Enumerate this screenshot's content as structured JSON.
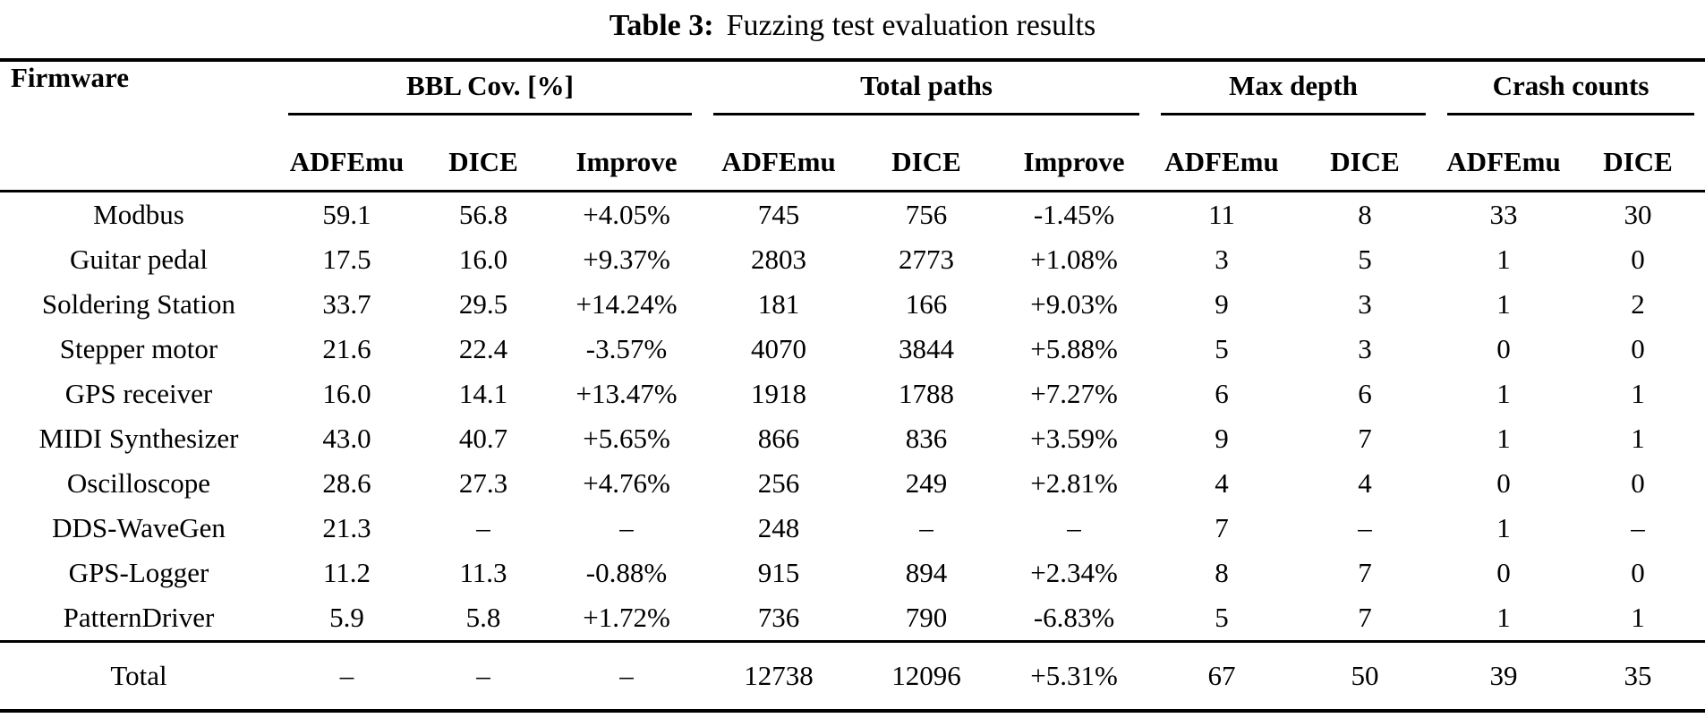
{
  "title": {
    "label": "Table 3:",
    "caption": "Fuzzing test evaluation results"
  },
  "table": {
    "firmware_header": "Firmware",
    "groups": [
      {
        "label": "BBL Cov. [%]",
        "cols": [
          "ADFEmu",
          "DICE",
          "Improve"
        ]
      },
      {
        "label": "Total paths",
        "cols": [
          "ADFEmu",
          "DICE",
          "Improve"
        ]
      },
      {
        "label": "Max depth",
        "cols": [
          "ADFEmu",
          "DICE"
        ]
      },
      {
        "label": "Crash counts",
        "cols": [
          "ADFEmu",
          "DICE"
        ]
      }
    ],
    "rows": [
      {
        "firmware": "Modbus",
        "values": [
          "59.1",
          "56.8",
          "+4.05%",
          "745",
          "756",
          "-1.45%",
          "11",
          "8",
          "33",
          "30"
        ]
      },
      {
        "firmware": "Guitar pedal",
        "values": [
          "17.5",
          "16.0",
          "+9.37%",
          "2803",
          "2773",
          "+1.08%",
          "3",
          "5",
          "1",
          "0"
        ]
      },
      {
        "firmware": "Soldering Station",
        "values": [
          "33.7",
          "29.5",
          "+14.24%",
          "181",
          "166",
          "+9.03%",
          "9",
          "3",
          "1",
          "2"
        ]
      },
      {
        "firmware": "Stepper motor",
        "values": [
          "21.6",
          "22.4",
          "-3.57%",
          "4070",
          "3844",
          "+5.88%",
          "5",
          "3",
          "0",
          "0"
        ]
      },
      {
        "firmware": "GPS receiver",
        "values": [
          "16.0",
          "14.1",
          "+13.47%",
          "1918",
          "1788",
          "+7.27%",
          "6",
          "6",
          "1",
          "1"
        ]
      },
      {
        "firmware": "MIDI Synthesizer",
        "values": [
          "43.0",
          "40.7",
          "+5.65%",
          "866",
          "836",
          "+3.59%",
          "9",
          "7",
          "1",
          "1"
        ]
      },
      {
        "firmware": "Oscilloscope",
        "values": [
          "28.6",
          "27.3",
          "+4.76%",
          "256",
          "249",
          "+2.81%",
          "4",
          "4",
          "0",
          "0"
        ]
      },
      {
        "firmware": "DDS-WaveGen",
        "values": [
          "21.3",
          "–",
          "–",
          "248",
          "–",
          "–",
          "7",
          "–",
          "1",
          "–"
        ]
      },
      {
        "firmware": "GPS-Logger",
        "values": [
          "11.2",
          "11.3",
          "-0.88%",
          "915",
          "894",
          "+2.34%",
          "8",
          "7",
          "0",
          "0"
        ]
      },
      {
        "firmware": "PatternDriver",
        "values": [
          "5.9",
          "5.8",
          "+1.72%",
          "736",
          "790",
          "-6.83%",
          "5",
          "7",
          "1",
          "1"
        ]
      }
    ],
    "total": {
      "firmware": "Total",
      "values": [
        "–",
        "–",
        "–",
        "12738",
        "12096",
        "+5.31%",
        "67",
        "50",
        "39",
        "35"
      ]
    }
  }
}
